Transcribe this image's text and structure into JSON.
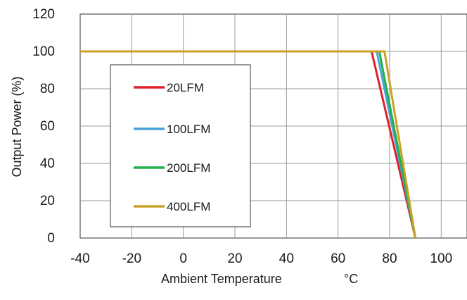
{
  "chart_data": {
    "type": "line",
    "title": "",
    "xlabel": "Ambient Temperature",
    "xlabel_unit": "°C",
    "ylabel": "Output Power  (%)",
    "xlim": [
      -40,
      110
    ],
    "ylim": [
      0,
      120
    ],
    "x_ticks": [
      "-40",
      "-20",
      "0",
      "20",
      "40",
      "60",
      "80",
      "100"
    ],
    "y_ticks": [
      "0",
      "20",
      "40",
      "60",
      "80",
      "100",
      "120"
    ],
    "x_tick_values": [
      -40,
      -20,
      0,
      20,
      40,
      60,
      80,
      100
    ],
    "y_tick_values": [
      0,
      20,
      40,
      60,
      80,
      100,
      120
    ],
    "grid": true,
    "legend_position": "inside-left",
    "series": [
      {
        "name": "20LFM",
        "color": "#e0202a",
        "x": [
          -40,
          73,
          90
        ],
        "y": [
          100,
          100,
          0
        ]
      },
      {
        "name": "100LFM",
        "color": "#4aa3d8",
        "x": [
          -40,
          75,
          90
        ],
        "y": [
          100,
          100,
          0
        ]
      },
      {
        "name": "200LFM",
        "color": "#22b04b",
        "x": [
          -40,
          76,
          90
        ],
        "y": [
          100,
          100,
          0
        ]
      },
      {
        "name": "400LFM",
        "color": "#c9a227",
        "x": [
          -40,
          78,
          90
        ],
        "y": [
          100,
          100,
          0
        ]
      }
    ]
  }
}
